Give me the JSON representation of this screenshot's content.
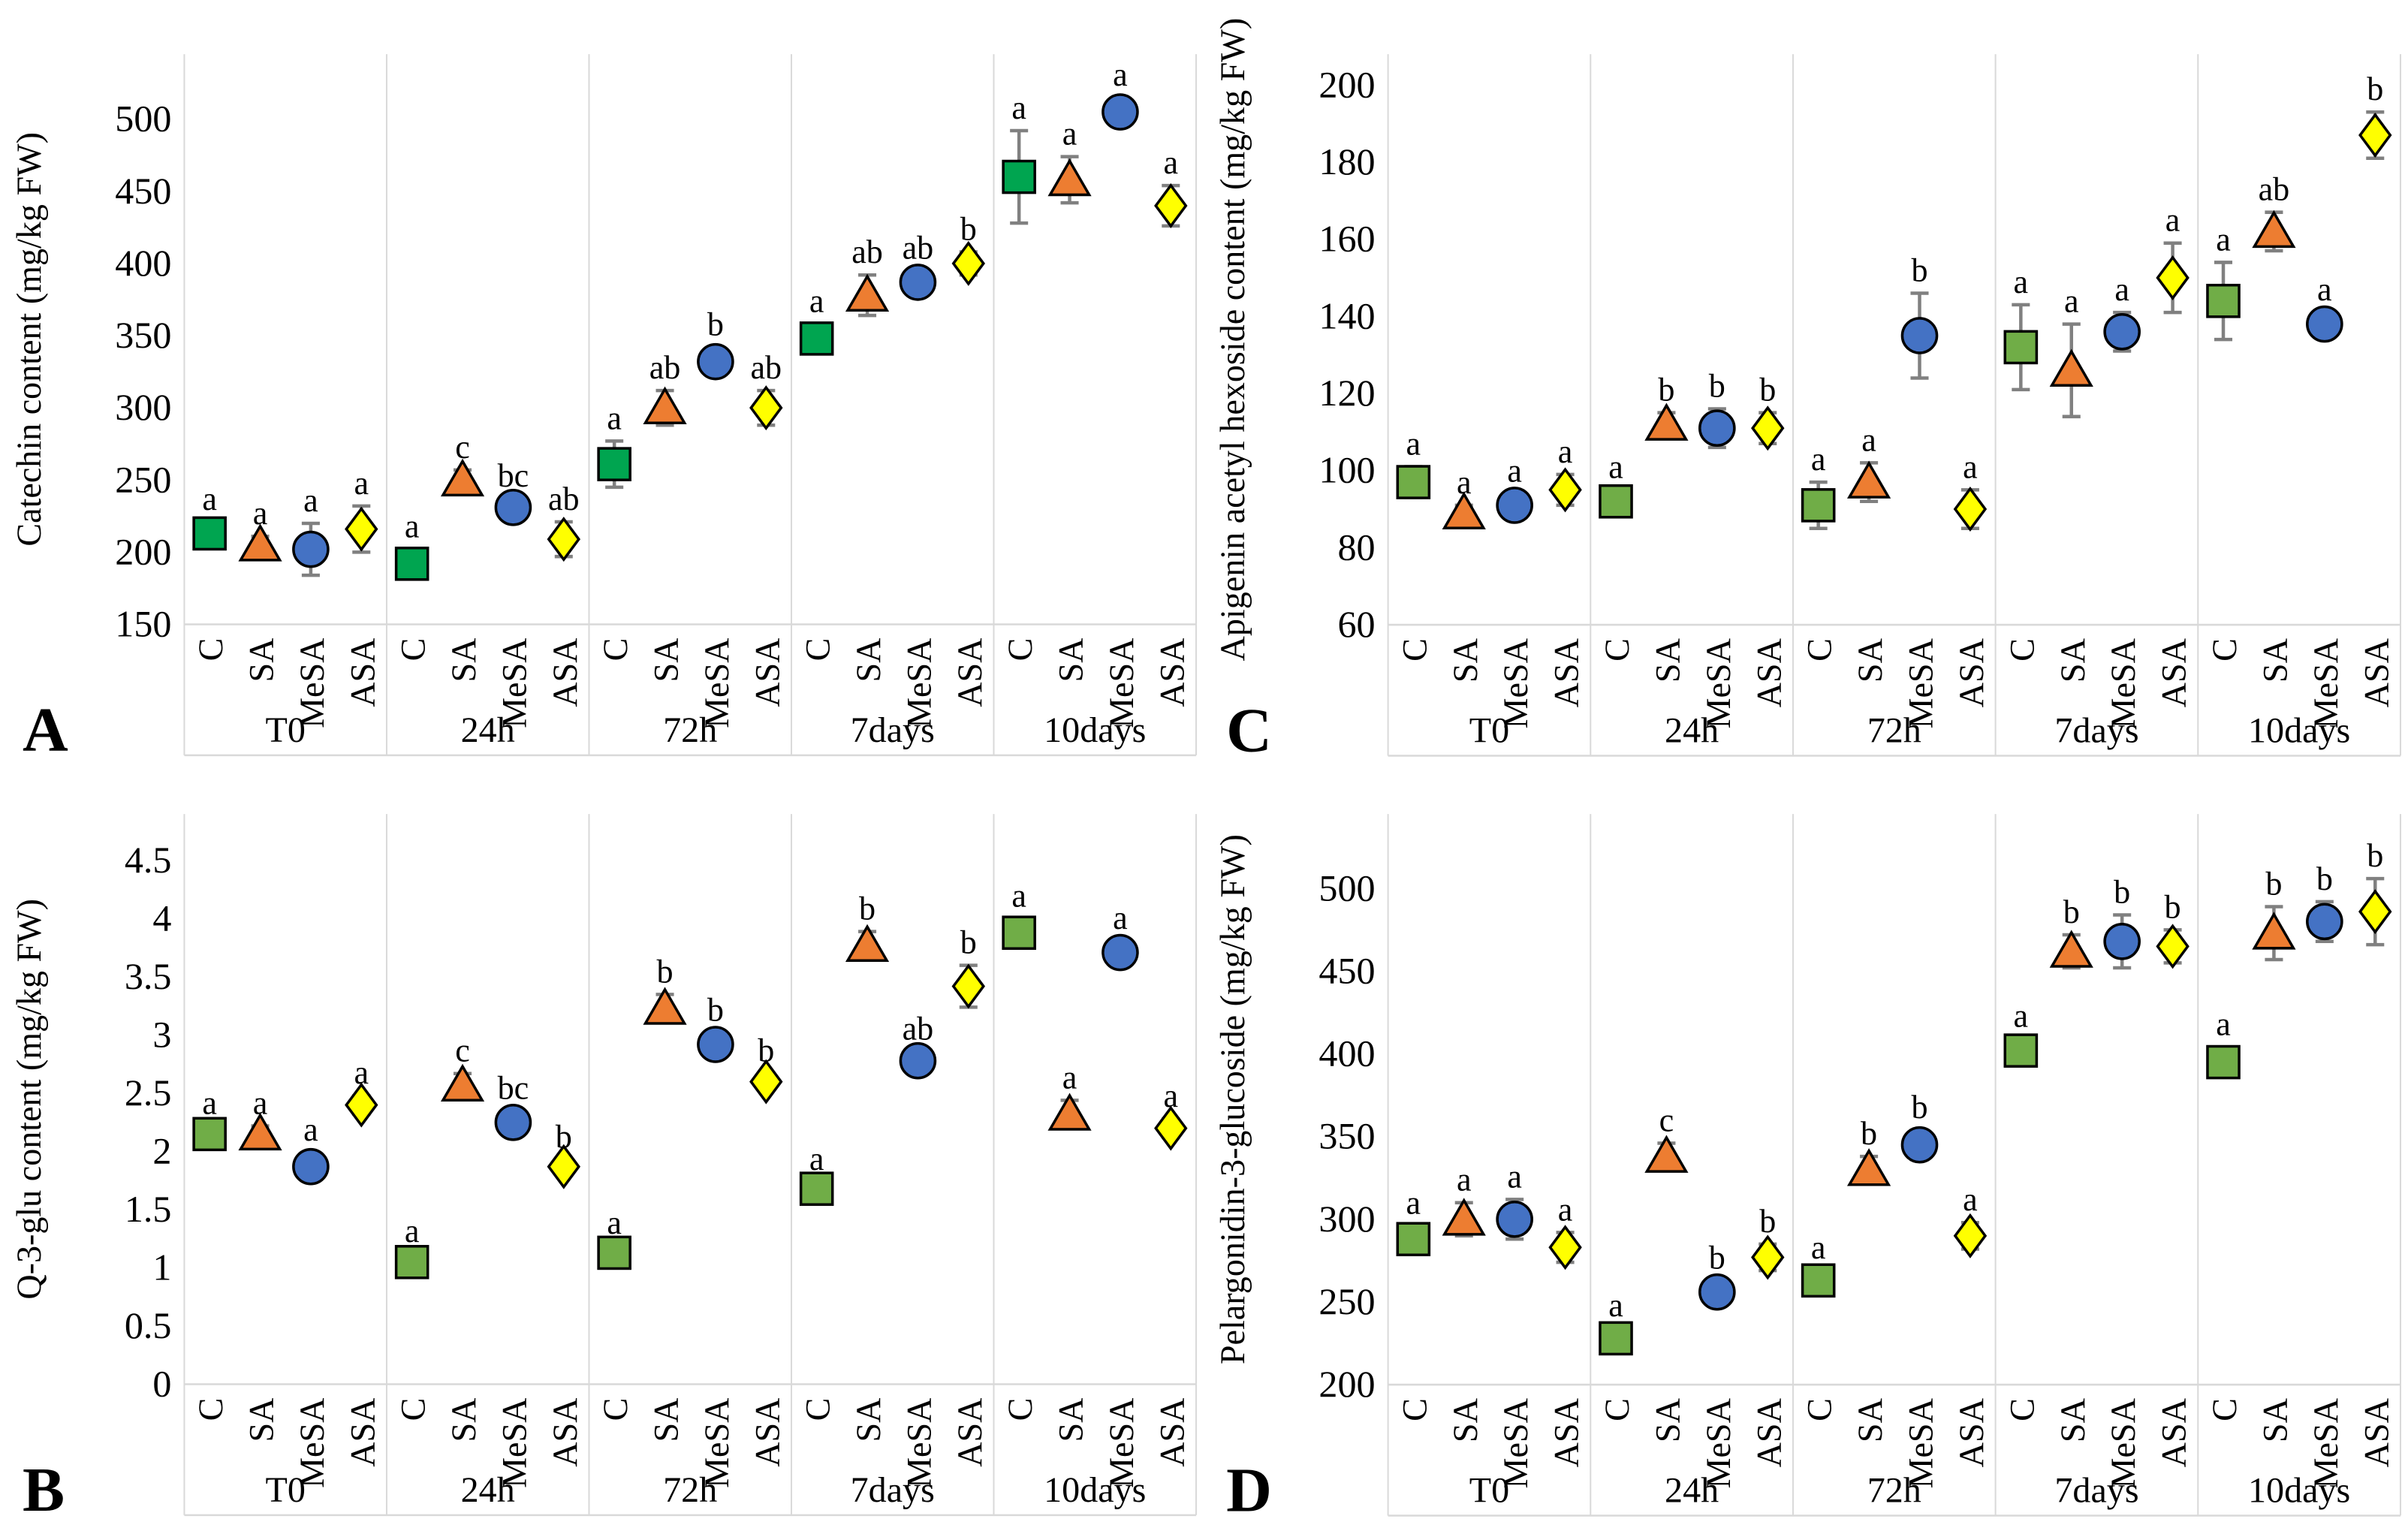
{
  "figure": {
    "background": "#FFFFFF",
    "grid_color": "#D9D9D9",
    "error_bar_color": "#808080",
    "text_color": "#000000",
    "treatments": [
      "C",
      "SA",
      "MeSA",
      "ASA"
    ],
    "timepoints": [
      "T0",
      "24h",
      "72h",
      "7days",
      "10days"
    ],
    "marker_shapes": {
      "C": "square",
      "SA": "triangle",
      "MeSA": "circle",
      "ASA": "diamond"
    }
  },
  "chart_data": [
    {
      "id": "A",
      "type": "scatter",
      "ylabel": "Catechin content (mg/kg FW)",
      "ylim": [
        150,
        545
      ],
      "ytick_values": [
        150,
        200,
        250,
        300,
        350,
        400,
        450,
        500
      ],
      "ytick_labels": [
        "150",
        "200",
        "250",
        "300",
        "350",
        "400",
        "450",
        "500"
      ],
      "legend_position": "none",
      "grid": "group-separators-only",
      "marker_colors": {
        "C": "#00A550",
        "SA": "#ED7D31",
        "MeSA": "#4472C4",
        "ASA": "#FFFF00"
      },
      "groups": [
        {
          "label": "T0",
          "points": [
            {
              "treatment": "C",
              "value": 213,
              "error": 8,
              "sig": "a"
            },
            {
              "treatment": "SA",
              "value": 205,
              "error": 6,
              "sig": "a"
            },
            {
              "treatment": "MeSA",
              "value": 202,
              "error": 18,
              "sig": "a"
            },
            {
              "treatment": "ASA",
              "value": 216,
              "error": 16,
              "sig": "a"
            }
          ]
        },
        {
          "label": "24h",
          "points": [
            {
              "treatment": "C",
              "value": 192,
              "error": 10,
              "sig": "a"
            },
            {
              "treatment": "SA",
              "value": 250,
              "error": 7,
              "sig": "c"
            },
            {
              "treatment": "MeSA",
              "value": 231,
              "error": 6,
              "sig": "bc"
            },
            {
              "treatment": "ASA",
              "value": 209,
              "error": 12,
              "sig": "ab"
            }
          ]
        },
        {
          "label": "72h",
          "points": [
            {
              "treatment": "C",
              "value": 261,
              "error": 16,
              "sig": "a"
            },
            {
              "treatment": "SA",
              "value": 300,
              "error": 12,
              "sig": "ab"
            },
            {
              "treatment": "MeSA",
              "value": 332,
              "error": 10,
              "sig": "b"
            },
            {
              "treatment": "ASA",
              "value": 300,
              "error": 12,
              "sig": "ab"
            }
          ]
        },
        {
          "label": "7days",
          "points": [
            {
              "treatment": "C",
              "value": 348,
              "error": 10,
              "sig": "a"
            },
            {
              "treatment": "SA",
              "value": 378,
              "error": 14,
              "sig": "ab"
            },
            {
              "treatment": "MeSA",
              "value": 387,
              "error": 8,
              "sig": "ab"
            },
            {
              "treatment": "ASA",
              "value": 400,
              "error": 8,
              "sig": "b"
            }
          ]
        },
        {
          "label": "10days",
          "points": [
            {
              "treatment": "C",
              "value": 460,
              "error": 32,
              "sig": "a"
            },
            {
              "treatment": "SA",
              "value": 458,
              "error": 16,
              "sig": "a"
            },
            {
              "treatment": "MeSA",
              "value": 505,
              "error": 10,
              "sig": "a"
            },
            {
              "treatment": "ASA",
              "value": 440,
              "error": 14,
              "sig": "a"
            }
          ]
        }
      ]
    },
    {
      "id": "B",
      "type": "scatter",
      "ylabel": "Q-3-glu content (mg/kg FW)",
      "ylim": [
        0,
        4.9
      ],
      "ytick_values": [
        0,
        0.5,
        1,
        1.5,
        2,
        2.5,
        3,
        3.5,
        4,
        4.5
      ],
      "ytick_labels": [
        "0",
        "0.5",
        "1",
        "1.5",
        "2",
        "2.5",
        "3",
        "3.5",
        "4",
        "4.5"
      ],
      "legend_position": "none",
      "grid": "group-separators-only",
      "marker_colors": {
        "C": "#70AD47",
        "SA": "#ED7D31",
        "MeSA": "#4472C4",
        "ASA": "#FFFF00"
      },
      "groups": [
        {
          "label": "T0",
          "points": [
            {
              "treatment": "C",
              "value": 2.15,
              "error": 0.07,
              "sig": "a"
            },
            {
              "treatment": "SA",
              "value": 2.15,
              "error": 0.07,
              "sig": "a"
            },
            {
              "treatment": "MeSA",
              "value": 1.87,
              "error": 0.12,
              "sig": "a"
            },
            {
              "treatment": "ASA",
              "value": 2.4,
              "error": 0.08,
              "sig": "a"
            }
          ]
        },
        {
          "label": "24h",
          "points": [
            {
              "treatment": "C",
              "value": 1.05,
              "error": 0.07,
              "sig": "a"
            },
            {
              "treatment": "SA",
              "value": 2.57,
              "error": 0.1,
              "sig": "c"
            },
            {
              "treatment": "MeSA",
              "value": 2.25,
              "error": 0.1,
              "sig": "bc"
            },
            {
              "treatment": "ASA",
              "value": 1.87,
              "error": 0.06,
              "sig": "b"
            }
          ]
        },
        {
          "label": "72h",
          "points": [
            {
              "treatment": "C",
              "value": 1.13,
              "error": 0.06,
              "sig": "a"
            },
            {
              "treatment": "SA",
              "value": 3.23,
              "error": 0.12,
              "sig": "b"
            },
            {
              "treatment": "MeSA",
              "value": 2.92,
              "error": 0.1,
              "sig": "b"
            },
            {
              "treatment": "ASA",
              "value": 2.6,
              "error": 0.07,
              "sig": "b"
            }
          ]
        },
        {
          "label": "7days",
          "points": [
            {
              "treatment": "C",
              "value": 1.68,
              "error": 0.06,
              "sig": "a"
            },
            {
              "treatment": "SA",
              "value": 3.77,
              "error": 0.12,
              "sig": "b"
            },
            {
              "treatment": "MeSA",
              "value": 2.78,
              "error": 0.08,
              "sig": "ab"
            },
            {
              "treatment": "ASA",
              "value": 3.42,
              "error": 0.18,
              "sig": "b"
            }
          ]
        },
        {
          "label": "10days",
          "points": [
            {
              "treatment": "C",
              "value": 3.88,
              "error": 0.12,
              "sig": "a"
            },
            {
              "treatment": "SA",
              "value": 2.32,
              "error": 0.12,
              "sig": "a"
            },
            {
              "treatment": "MeSA",
              "value": 3.71,
              "error": 0.1,
              "sig": "a"
            },
            {
              "treatment": "ASA",
              "value": 2.2,
              "error": 0.08,
              "sig": "a"
            }
          ]
        }
      ]
    },
    {
      "id": "C",
      "type": "scatter",
      "ylabel": "Apigenin acetyl hexoside content (mg/kg FW)",
      "ylim": [
        60,
        208
      ],
      "ytick_values": [
        60,
        80,
        100,
        120,
        140,
        160,
        180,
        200
      ],
      "ytick_labels": [
        "60",
        "80",
        "100",
        "120",
        "140",
        "160",
        "180",
        "200"
      ],
      "legend_position": "none",
      "grid": "group-separators-only",
      "marker_colors": {
        "C": "#70AD47",
        "SA": "#ED7D31",
        "MeSA": "#4472C4",
        "ASA": "#FFFF00"
      },
      "groups": [
        {
          "label": "T0",
          "points": [
            {
              "treatment": "C",
              "value": 97,
              "error": 4,
              "sig": "a"
            },
            {
              "treatment": "SA",
              "value": 89,
              "error": 2,
              "sig": "a"
            },
            {
              "treatment": "MeSA",
              "value": 91,
              "error": 3,
              "sig": "a"
            },
            {
              "treatment": "ASA",
              "value": 95,
              "error": 4,
              "sig": "a"
            }
          ]
        },
        {
          "label": "24h",
          "points": [
            {
              "treatment": "C",
              "value": 92,
              "error": 3,
              "sig": "a"
            },
            {
              "treatment": "SA",
              "value": 112,
              "error": 3,
              "sig": "b"
            },
            {
              "treatment": "MeSA",
              "value": 111,
              "error": 5,
              "sig": "b"
            },
            {
              "treatment": "ASA",
              "value": 111,
              "error": 4,
              "sig": "b"
            }
          ]
        },
        {
          "label": "72h",
          "points": [
            {
              "treatment": "C",
              "value": 91,
              "error": 6,
              "sig": "a"
            },
            {
              "treatment": "SA",
              "value": 97,
              "error": 5,
              "sig": "a"
            },
            {
              "treatment": "MeSA",
              "value": 135,
              "error": 11,
              "sig": "b"
            },
            {
              "treatment": "ASA",
              "value": 90,
              "error": 5,
              "sig": "a"
            }
          ]
        },
        {
          "label": "7days",
          "points": [
            {
              "treatment": "C",
              "value": 132,
              "error": 11,
              "sig": "a"
            },
            {
              "treatment": "SA",
              "value": 126,
              "error": 12,
              "sig": "a"
            },
            {
              "treatment": "MeSA",
              "value": 136,
              "error": 5,
              "sig": "a"
            },
            {
              "treatment": "ASA",
              "value": 150,
              "error": 9,
              "sig": "a"
            }
          ]
        },
        {
          "label": "10days",
          "points": [
            {
              "treatment": "C",
              "value": 144,
              "error": 10,
              "sig": "a"
            },
            {
              "treatment": "SA",
              "value": 162,
              "error": 5,
              "sig": "ab"
            },
            {
              "treatment": "MeSA",
              "value": 138,
              "error": 3,
              "sig": "a"
            },
            {
              "treatment": "ASA",
              "value": 187,
              "error": 6,
              "sig": "b"
            }
          ]
        }
      ]
    },
    {
      "id": "D",
      "type": "scatter",
      "ylabel": "Pelargonidin-3-glucoside (mg/kg FW)",
      "ylim": [
        200,
        545
      ],
      "ytick_values": [
        200,
        250,
        300,
        350,
        400,
        450,
        500
      ],
      "ytick_labels": [
        "200",
        "250",
        "300",
        "350",
        "400",
        "450",
        "500"
      ],
      "legend_position": "none",
      "grid": "group-separators-only",
      "marker_colors": {
        "C": "#70AD47",
        "SA": "#ED7D31",
        "MeSA": "#4472C4",
        "ASA": "#FFFF00"
      },
      "groups": [
        {
          "label": "T0",
          "points": [
            {
              "treatment": "C",
              "value": 288,
              "error": 8,
              "sig": "a"
            },
            {
              "treatment": "SA",
              "value": 300,
              "error": 10,
              "sig": "a"
            },
            {
              "treatment": "MeSA",
              "value": 300,
              "error": 12,
              "sig": "a"
            },
            {
              "treatment": "ASA",
              "value": 283,
              "error": 9,
              "sig": "a"
            }
          ]
        },
        {
          "label": "24h",
          "points": [
            {
              "treatment": "C",
              "value": 228,
              "error": 6,
              "sig": "a"
            },
            {
              "treatment": "SA",
              "value": 338,
              "error": 8,
              "sig": "c"
            },
            {
              "treatment": "MeSA",
              "value": 256,
              "error": 7,
              "sig": "b"
            },
            {
              "treatment": "ASA",
              "value": 277,
              "error": 8,
              "sig": "b"
            }
          ]
        },
        {
          "label": "72h",
          "points": [
            {
              "treatment": "C",
              "value": 263,
              "error": 6,
              "sig": "a"
            },
            {
              "treatment": "SA",
              "value": 330,
              "error": 8,
              "sig": "b"
            },
            {
              "treatment": "MeSA",
              "value": 345,
              "error": 9,
              "sig": "b"
            },
            {
              "treatment": "ASA",
              "value": 290,
              "error": 8,
              "sig": "a"
            }
          ]
        },
        {
          "label": "7days",
          "points": [
            {
              "treatment": "C",
              "value": 402,
              "error": 7,
              "sig": "a"
            },
            {
              "treatment": "SA",
              "value": 462,
              "error": 10,
              "sig": "b"
            },
            {
              "treatment": "MeSA",
              "value": 468,
              "error": 16,
              "sig": "b"
            },
            {
              "treatment": "ASA",
              "value": 465,
              "error": 10,
              "sig": "b"
            }
          ]
        },
        {
          "label": "10days",
          "points": [
            {
              "treatment": "C",
              "value": 395,
              "error": 9,
              "sig": "a"
            },
            {
              "treatment": "SA",
              "value": 473,
              "error": 16,
              "sig": "b"
            },
            {
              "treatment": "MeSA",
              "value": 480,
              "error": 12,
              "sig": "b"
            },
            {
              "treatment": "ASA",
              "value": 486,
              "error": 20,
              "sig": "b"
            }
          ]
        }
      ]
    }
  ]
}
